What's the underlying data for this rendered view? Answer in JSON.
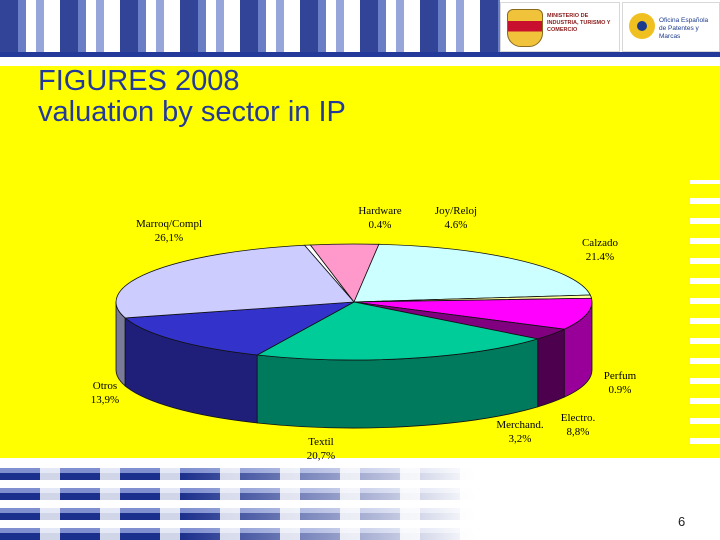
{
  "slide": {
    "title_line1": "FIGURES 2008",
    "title_line2": "valuation by sector in IP",
    "page_number": "6"
  },
  "logos": {
    "ministry": "MINISTERIO DE INDUSTRIA, TURISMO Y COMERCIO",
    "oepm": "Oficina Española de Patentes y Marcas"
  },
  "colors": {
    "title": "#233a9a",
    "background_accent": "#ffff00",
    "brand_blue": "#1b2f8c"
  },
  "chart_data": {
    "type": "pie",
    "title": "",
    "legend": "none",
    "slices": [
      {
        "label": "Hardware",
        "value": "0.4%",
        "pct": 0.4,
        "color": "#ffffff"
      },
      {
        "label": "Joy/Reloj",
        "value": "4.6%",
        "pct": 4.6,
        "color": "#ff99cc"
      },
      {
        "label": "Calzado",
        "value": "21.4%",
        "pct": 21.4,
        "color": "#ccffff"
      },
      {
        "label": "Perfum",
        "value": "0.9%",
        "pct": 0.9,
        "color": "#ffff99"
      },
      {
        "label": "Electro.",
        "value": "8,8%",
        "pct": 8.8,
        "color": "#ff00ff"
      },
      {
        "label": "Merchand.",
        "value": "3,2%",
        "pct": 3.2,
        "color": "#800080"
      },
      {
        "label": "Textil",
        "value": "20,7%",
        "pct": 20.7,
        "color": "#00cc99"
      },
      {
        "label": "Otros",
        "value": "13,9%",
        "pct": 13.9,
        "color": "#3333cc"
      },
      {
        "label": "Marroq/Compl",
        "value": "26,1%",
        "pct": 26.1,
        "color": "#ccccff"
      }
    ]
  }
}
